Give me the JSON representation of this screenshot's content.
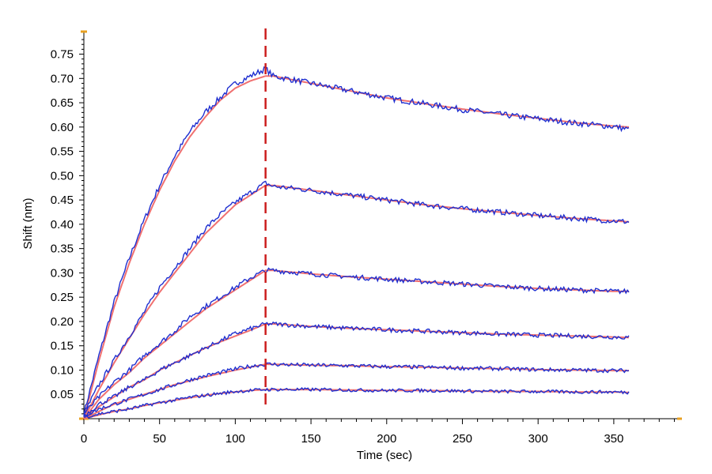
{
  "chart_data": {
    "type": "line",
    "xlabel": "Time (sec)",
    "ylabel": "Shift (nm)",
    "xlim": [
      0,
      395
    ],
    "ylim": [
      0,
      0.785
    ],
    "xticks": [
      0,
      50,
      100,
      150,
      200,
      250,
      300,
      350
    ],
    "yticks": [
      0.05,
      0.1,
      0.15,
      0.2,
      0.25,
      0.3,
      0.35,
      0.4,
      0.45,
      0.5,
      0.55,
      0.6,
      0.65,
      0.7,
      0.75
    ],
    "ytick_labels": [
      "0.05",
      "0.10",
      "0.15",
      "0.20",
      "0.25",
      "0.30",
      "0.35",
      "0.40",
      "0.45",
      "0.50",
      "0.55",
      "0.60",
      "0.65",
      "0.70",
      "0.75"
    ],
    "grid": false,
    "legend": "none",
    "association_end_time": 120,
    "end_time": 360,
    "series": [
      {
        "kind": "data",
        "x": [
          0,
          10,
          20,
          30,
          40,
          50,
          60,
          70,
          80,
          90,
          100,
          110,
          120,
          125,
          150,
          175,
          200,
          225,
          250,
          275,
          300,
          325,
          350,
          360
        ],
        "values": [
          0.01,
          0.13,
          0.24,
          0.33,
          0.41,
          0.48,
          0.54,
          0.59,
          0.63,
          0.66,
          0.69,
          0.705,
          0.72,
          0.705,
          0.69,
          0.675,
          0.66,
          0.648,
          0.636,
          0.626,
          0.617,
          0.608,
          0.601,
          0.595
        ]
      },
      {
        "kind": "data",
        "x": [
          0,
          10,
          20,
          30,
          40,
          50,
          60,
          70,
          80,
          90,
          100,
          110,
          120,
          125,
          150,
          175,
          200,
          225,
          250,
          275,
          300,
          325,
          350,
          360
        ],
        "values": [
          0.01,
          0.07,
          0.12,
          0.17,
          0.22,
          0.27,
          0.31,
          0.35,
          0.39,
          0.42,
          0.445,
          0.465,
          0.485,
          0.478,
          0.47,
          0.46,
          0.45,
          0.44,
          0.432,
          0.425,
          0.418,
          0.412,
          0.407,
          0.405
        ]
      },
      {
        "kind": "data",
        "x": [
          0,
          10,
          20,
          30,
          40,
          50,
          60,
          70,
          80,
          90,
          100,
          110,
          120,
          125,
          150,
          175,
          200,
          225,
          250,
          275,
          300,
          325,
          350,
          360
        ],
        "values": [
          0.01,
          0.045,
          0.075,
          0.1,
          0.13,
          0.155,
          0.18,
          0.21,
          0.23,
          0.25,
          0.27,
          0.29,
          0.305,
          0.305,
          0.298,
          0.292,
          0.287,
          0.282,
          0.277,
          0.272,
          0.268,
          0.265,
          0.262,
          0.262
        ]
      },
      {
        "kind": "data",
        "x": [
          0,
          10,
          20,
          30,
          40,
          50,
          60,
          70,
          80,
          90,
          100,
          110,
          120,
          125,
          150,
          175,
          200,
          225,
          250,
          275,
          300,
          325,
          350,
          360
        ],
        "values": [
          0.005,
          0.03,
          0.045,
          0.065,
          0.08,
          0.1,
          0.115,
          0.13,
          0.145,
          0.16,
          0.175,
          0.185,
          0.195,
          0.195,
          0.19,
          0.186,
          0.183,
          0.18,
          0.177,
          0.174,
          0.172,
          0.17,
          0.168,
          0.167
        ]
      },
      {
        "kind": "data",
        "x": [
          0,
          10,
          20,
          30,
          40,
          50,
          60,
          70,
          80,
          90,
          100,
          110,
          120,
          125,
          150,
          175,
          200,
          225,
          250,
          275,
          300,
          325,
          350,
          360
        ],
        "values": [
          0.005,
          0.02,
          0.03,
          0.04,
          0.05,
          0.06,
          0.07,
          0.08,
          0.088,
          0.095,
          0.102,
          0.108,
          0.112,
          0.112,
          0.11,
          0.109,
          0.107,
          0.106,
          0.104,
          0.103,
          0.101,
          0.1,
          0.099,
          0.099
        ]
      },
      {
        "kind": "data",
        "x": [
          0,
          10,
          20,
          30,
          40,
          50,
          60,
          70,
          80,
          90,
          100,
          110,
          120,
          125,
          150,
          175,
          200,
          225,
          250,
          275,
          300,
          325,
          350,
          360
        ],
        "values": [
          0.003,
          0.01,
          0.015,
          0.02,
          0.027,
          0.033,
          0.038,
          0.044,
          0.048,
          0.052,
          0.056,
          0.058,
          0.06,
          0.06,
          0.06,
          0.059,
          0.058,
          0.058,
          0.057,
          0.056,
          0.056,
          0.055,
          0.055,
          0.054
        ]
      },
      {
        "kind": "fit",
        "x": [
          0,
          10,
          20,
          30,
          40,
          50,
          60,
          70,
          80,
          90,
          100,
          110,
          120,
          125,
          150,
          175,
          200,
          225,
          250,
          275,
          300,
          325,
          350,
          360
        ],
        "values": [
          0.0,
          0.12,
          0.23,
          0.32,
          0.4,
          0.47,
          0.53,
          0.58,
          0.62,
          0.655,
          0.68,
          0.695,
          0.705,
          0.705,
          0.69,
          0.675,
          0.66,
          0.648,
          0.637,
          0.627,
          0.618,
          0.609,
          0.602,
          0.6
        ]
      },
      {
        "kind": "fit",
        "x": [
          0,
          10,
          20,
          30,
          40,
          50,
          60,
          70,
          80,
          90,
          100,
          110,
          120,
          125,
          150,
          175,
          200,
          225,
          250,
          275,
          300,
          325,
          350,
          360
        ],
        "values": [
          0.0,
          0.06,
          0.115,
          0.165,
          0.215,
          0.26,
          0.3,
          0.34,
          0.38,
          0.41,
          0.44,
          0.46,
          0.48,
          0.48,
          0.47,
          0.46,
          0.45,
          0.44,
          0.432,
          0.425,
          0.418,
          0.412,
          0.407,
          0.405
        ]
      },
      {
        "kind": "fit",
        "x": [
          0,
          10,
          20,
          30,
          40,
          50,
          60,
          70,
          80,
          90,
          100,
          110,
          120,
          125,
          150,
          175,
          200,
          225,
          250,
          275,
          300,
          325,
          350,
          360
        ],
        "values": [
          0.0,
          0.04,
          0.07,
          0.095,
          0.125,
          0.15,
          0.175,
          0.2,
          0.225,
          0.245,
          0.265,
          0.285,
          0.305,
          0.305,
          0.298,
          0.292,
          0.287,
          0.282,
          0.277,
          0.272,
          0.268,
          0.265,
          0.262,
          0.262
        ]
      },
      {
        "kind": "fit",
        "x": [
          0,
          10,
          20,
          30,
          40,
          50,
          60,
          70,
          80,
          90,
          100,
          110,
          120,
          125,
          150,
          175,
          200,
          225,
          250,
          275,
          300,
          325,
          350,
          360
        ],
        "values": [
          0.0,
          0.025,
          0.045,
          0.065,
          0.08,
          0.1,
          0.115,
          0.13,
          0.145,
          0.158,
          0.17,
          0.182,
          0.195,
          0.195,
          0.19,
          0.186,
          0.183,
          0.18,
          0.177,
          0.174,
          0.172,
          0.17,
          0.168,
          0.167
        ]
      },
      {
        "kind": "fit",
        "x": [
          0,
          10,
          20,
          30,
          40,
          50,
          60,
          70,
          80,
          90,
          100,
          110,
          120,
          125,
          150,
          175,
          200,
          225,
          250,
          275,
          300,
          325,
          350,
          360
        ],
        "values": [
          0.0,
          0.015,
          0.03,
          0.04,
          0.05,
          0.06,
          0.07,
          0.078,
          0.086,
          0.093,
          0.1,
          0.106,
          0.112,
          0.112,
          0.11,
          0.109,
          0.107,
          0.106,
          0.104,
          0.103,
          0.101,
          0.1,
          0.099,
          0.099
        ]
      },
      {
        "kind": "fit",
        "x": [
          0,
          10,
          20,
          30,
          40,
          50,
          60,
          70,
          80,
          90,
          100,
          110,
          120,
          125,
          150,
          175,
          200,
          225,
          250,
          275,
          300,
          325,
          350,
          360
        ],
        "values": [
          0.0,
          0.008,
          0.015,
          0.02,
          0.027,
          0.033,
          0.038,
          0.043,
          0.048,
          0.052,
          0.055,
          0.058,
          0.06,
          0.06,
          0.06,
          0.059,
          0.058,
          0.058,
          0.057,
          0.056,
          0.056,
          0.055,
          0.055,
          0.054
        ]
      }
    ]
  },
  "colors": {
    "data_line": "#1f2fd0",
    "fit_line": "#f07070",
    "dashed_marker": "#cc1f1f",
    "axis_accent": "#e8a020",
    "axis_line": "#000000",
    "background": "#ffffff"
  }
}
